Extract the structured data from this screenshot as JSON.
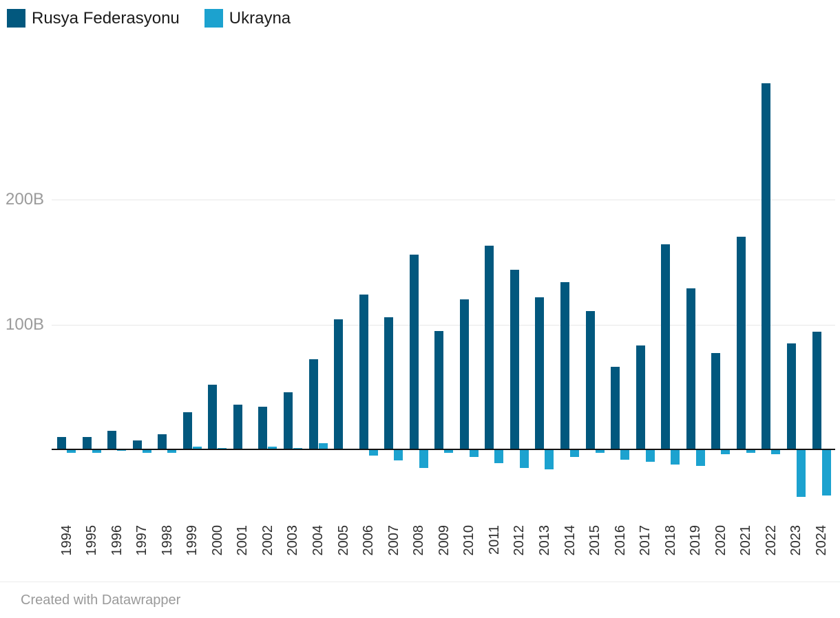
{
  "legend": {
    "items": [
      {
        "label": "Rusya Federasyonu",
        "color": "#02587E"
      },
      {
        "label": "Ukrayna",
        "color": "#1CA2CF"
      }
    ]
  },
  "footer": {
    "credit": "Created with Datawrapper"
  },
  "chart_data": {
    "type": "bar",
    "title": "",
    "xlabel": "",
    "ylabel": "",
    "unit": "B",
    "categories": [
      1994,
      1995,
      1996,
      1997,
      1998,
      1999,
      2000,
      2001,
      2002,
      2003,
      2004,
      2005,
      2006,
      2007,
      2008,
      2009,
      2010,
      2011,
      2012,
      2013,
      2014,
      2015,
      2016,
      2017,
      2018,
      2019,
      2020,
      2021,
      2022,
      2023,
      2024
    ],
    "series": [
      {
        "name": "Rusya Federasyonu",
        "color": "#02587E",
        "values": [
          10,
          10,
          15,
          7,
          12,
          30,
          52,
          36,
          34,
          46,
          72,
          104,
          124,
          106,
          156,
          95,
          120,
          163,
          144,
          122,
          134,
          111,
          66,
          83,
          164,
          129,
          77,
          170,
          293,
          85,
          94
        ]
      },
      {
        "name": "Ukrayna",
        "color": "#1CA2CF",
        "values": [
          -3,
          -3,
          -1,
          -3,
          -3,
          2,
          1,
          0.5,
          2,
          1,
          5,
          0.6,
          -5,
          -9,
          -15,
          -3,
          -6,
          -11,
          -15,
          -16,
          -6,
          -3,
          -8,
          -10,
          -12,
          -13,
          -4,
          -3,
          -4,
          -38,
          -37
        ]
      }
    ],
    "y_ticks": [
      {
        "value": 100,
        "label": "100B"
      },
      {
        "value": 200,
        "label": "200B"
      }
    ],
    "ylim": [
      -50,
      300
    ],
    "baseline": 0,
    "grid": true,
    "legend_position": "top-left"
  }
}
